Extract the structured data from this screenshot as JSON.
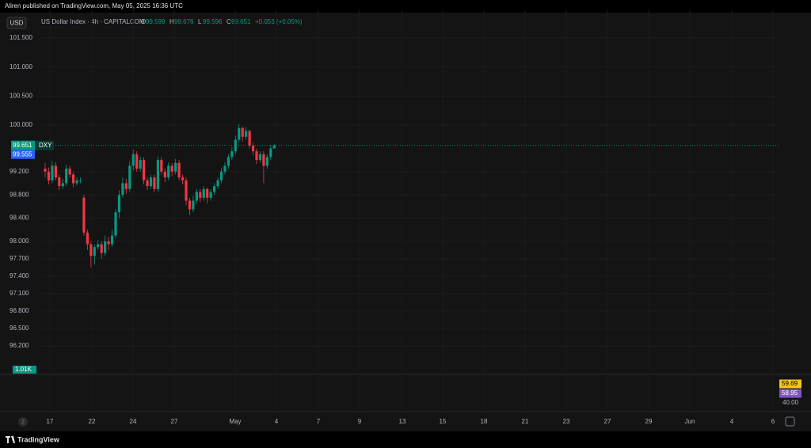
{
  "header": "Aliren published on TradingView.com, May 05, 2025 16:36 UTC",
  "footer": "TradingView",
  "chart_data": {
    "type": "candlestick",
    "currency": "USD",
    "title": "US Dollar Index · 4h · CAPITALCOM",
    "legend": [
      {
        "label": "O",
        "value": 99.599
      },
      {
        "label": "H",
        "value": 99.676
      },
      {
        "label": "L",
        "value": 99.596
      },
      {
        "label": "C",
        "value": 99.651
      }
    ],
    "change": "+0.053 (+0.05%)",
    "up_color": "#089981",
    "down_color": "#f23645",
    "open": [
      99.25,
      99.2,
      99.05,
      99.3,
      99.1,
      98.95,
      99.0,
      99.25,
      99.15,
      99.0,
      99.05,
      98.75,
      98.15,
      97.95,
      97.75,
      97.9,
      97.95,
      97.8,
      98.0,
      97.95,
      98.1,
      98.5,
      98.8,
      99.0,
      98.9,
      99.3,
      99.5,
      99.25,
      99.4,
      99.05,
      98.95,
      99.1,
      98.9,
      99.4,
      99.2,
      99.1,
      99.3,
      99.2,
      99.35,
      99.1,
      99.05,
      98.7,
      98.55,
      98.7,
      98.85,
      98.75,
      98.9,
      98.75,
      98.85,
      98.95,
      99.05,
      99.2,
      99.3,
      99.45,
      99.55,
      99.75,
      99.95,
      99.8,
      99.9,
      99.65,
      99.55,
      99.4,
      99.5,
      99.3,
      99.45,
      99.599
    ],
    "high": [
      99.35,
      99.27,
      99.38,
      99.36,
      99.15,
      99.08,
      99.32,
      99.3,
      99.2,
      99.1,
      99.1,
      98.8,
      98.2,
      98.0,
      97.95,
      98.02,
      98.0,
      98.1,
      98.08,
      98.2,
      98.55,
      98.88,
      99.1,
      99.08,
      99.38,
      99.58,
      99.55,
      99.46,
      99.45,
      99.1,
      99.15,
      99.15,
      99.46,
      99.45,
      99.25,
      99.36,
      99.35,
      99.42,
      99.4,
      99.15,
      99.1,
      98.75,
      98.78,
      98.9,
      98.9,
      98.95,
      98.93,
      98.9,
      99.0,
      99.1,
      99.26,
      99.36,
      99.5,
      99.62,
      99.82,
      100.02,
      99.98,
      99.96,
      99.92,
      99.7,
      99.6,
      99.55,
      99.55,
      99.5,
      99.66,
      99.676
    ],
    "low": [
      99.1,
      98.98,
      99.0,
      99.05,
      98.88,
      98.9,
      98.95,
      99.1,
      98.93,
      98.96,
      99.0,
      98.1,
      97.85,
      97.55,
      97.6,
      97.85,
      97.7,
      97.75,
      97.85,
      97.9,
      98.05,
      98.4,
      98.75,
      98.82,
      98.85,
      99.22,
      99.2,
      99.2,
      98.98,
      98.88,
      98.9,
      98.85,
      98.85,
      99.15,
      99.02,
      99.05,
      99.12,
      99.15,
      99.05,
      98.98,
      98.62,
      98.45,
      98.5,
      98.65,
      98.68,
      98.7,
      98.65,
      98.7,
      98.8,
      98.9,
      99.0,
      99.15,
      99.25,
      99.4,
      99.5,
      99.7,
      99.72,
      99.75,
      99.6,
      99.48,
      99.33,
      99.35,
      99.0,
      99.25,
      99.4,
      99.596
    ],
    "close": [
      99.2,
      99.05,
      99.3,
      99.1,
      98.95,
      99.0,
      99.25,
      99.15,
      99.0,
      99.05,
      99.05,
      98.15,
      97.95,
      97.75,
      97.9,
      97.95,
      97.8,
      98.0,
      97.95,
      98.1,
      98.5,
      98.8,
      99.0,
      98.9,
      99.3,
      99.5,
      99.25,
      99.4,
      99.05,
      98.95,
      99.1,
      98.9,
      99.4,
      99.2,
      99.1,
      99.3,
      99.2,
      99.35,
      99.1,
      99.05,
      98.7,
      98.55,
      98.7,
      98.85,
      98.75,
      98.9,
      98.75,
      98.85,
      98.95,
      99.05,
      99.2,
      99.3,
      99.45,
      99.55,
      99.75,
      99.95,
      99.8,
      99.9,
      99.65,
      99.55,
      99.4,
      99.5,
      99.3,
      99.45,
      99.6,
      99.651
    ],
    "ylim": [
      95.86,
      101.99
    ],
    "yticks": [
      {
        "value": 101.5,
        "label": "101.500"
      },
      {
        "value": 101,
        "label": "101.000"
      },
      {
        "value": 100.5,
        "label": "100.500"
      },
      {
        "value": 100,
        "label": "100.000"
      },
      {
        "value": 99.2,
        "label": "99.200"
      },
      {
        "value": 98.8,
        "label": "98.800"
      },
      {
        "value": 98.4,
        "label": "98.400"
      },
      {
        "value": 98,
        "label": "98.000"
      },
      {
        "value": 97.7,
        "label": "97.700"
      },
      {
        "value": 97.4,
        "label": "97.400"
      },
      {
        "value": 97.1,
        "label": "97.100"
      },
      {
        "value": 96.8,
        "label": "96.800"
      },
      {
        "value": 96.5,
        "label": "96.500"
      },
      {
        "value": 96.2,
        "label": "96.200"
      }
    ],
    "grid": true,
    "time_labels": [
      "17",
      "22",
      "24",
      "27",
      "May",
      "4",
      "7",
      "9",
      "13",
      "15",
      "18",
      "21",
      "23",
      "27",
      "29",
      "Jun",
      "4",
      "6"
    ],
    "last_price": {
      "value": 99.651,
      "symbol": "DXY",
      "color": "#089981"
    },
    "reference_price": {
      "value": 99.555,
      "color": "#2962ff"
    },
    "volume_label": {
      "value": 1010,
      "label": "1.01K"
    },
    "indicator": {
      "values": [
        59.69,
        58.95
      ],
      "colors": [
        "#f5c518",
        "#7e57c2"
      ],
      "ticks": [
        {
          "value": 40,
          "label": "40.00"
        }
      ]
    }
  }
}
